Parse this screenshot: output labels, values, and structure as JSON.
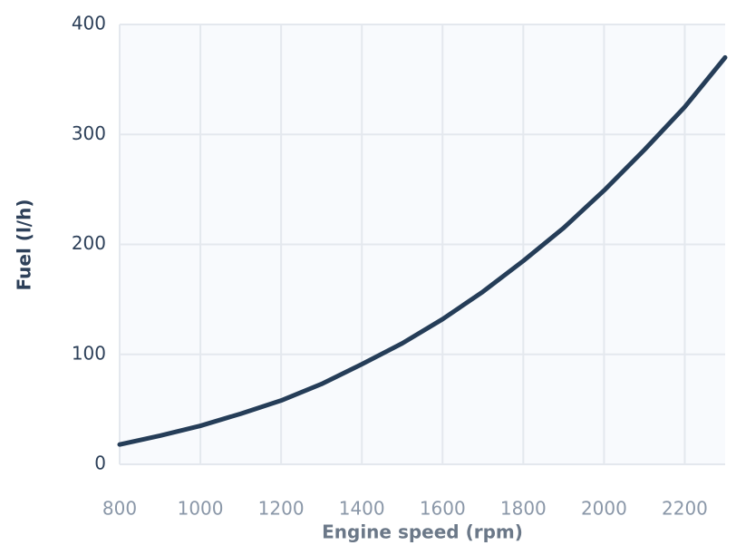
{
  "chart_data": {
    "type": "line",
    "x_label": "Engine speed (rpm)",
    "y_label": "Fuel (l/h)",
    "x": [
      800,
      900,
      1000,
      1100,
      1200,
      1300,
      1400,
      1500,
      1600,
      1700,
      1800,
      1900,
      2000,
      2100,
      2200,
      2300
    ],
    "series": [
      {
        "name": "Fuel",
        "color": "#253d58",
        "values": [
          18,
          26,
          35,
          46,
          58,
          73,
          91,
          110,
          132,
          157,
          185,
          215,
          249,
          286,
          325,
          370
        ]
      }
    ],
    "xlim": [
      800,
      2300
    ],
    "xticks": [
      800,
      1000,
      1200,
      1400,
      1600,
      1800,
      2000,
      2200
    ],
    "ylim": [
      0,
      400
    ],
    "yticks": [
      0,
      100,
      200,
      300,
      400
    ],
    "grid": true
  }
}
